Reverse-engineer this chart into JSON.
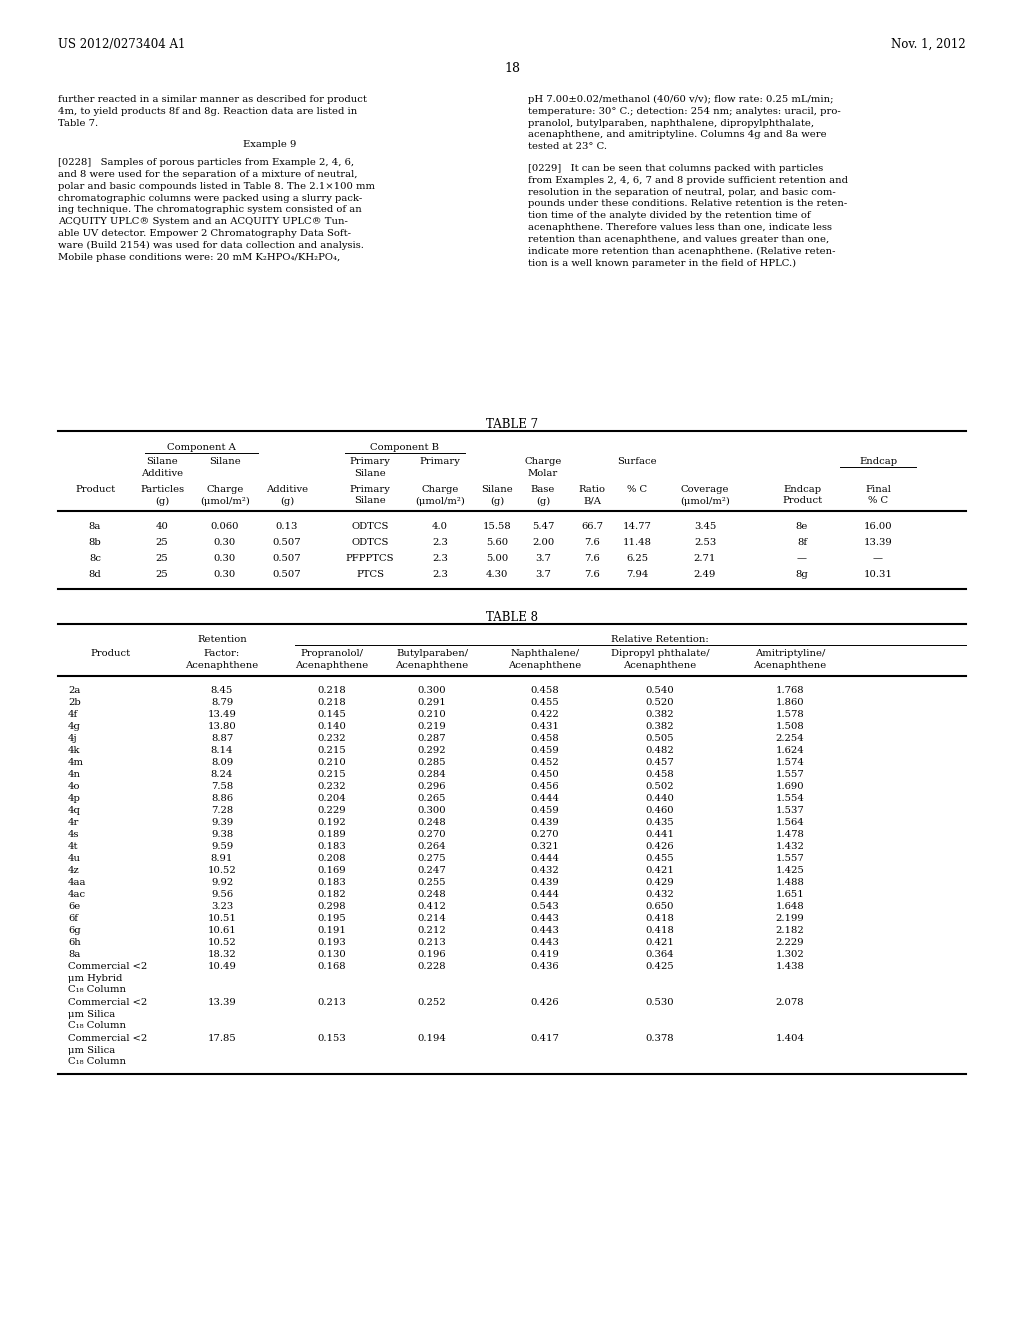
{
  "header_left": "US 2012/0273404 A1",
  "header_right": "Nov. 1, 2012",
  "page_number": "18",
  "para_left1": [
    "further reacted in a similar manner as described for product",
    "4m, to yield products 8f and 8g. Reaction data are listed in",
    "Table 7."
  ],
  "example9": "Example 9",
  "para228": [
    "[0228]   Samples of porous particles from Example 2, 4, 6,",
    "and 8 were used for the separation of a mixture of neutral,",
    "polar and basic compounds listed in Table 8. The 2.1×100 mm",
    "chromatographic columns were packed using a slurry pack-",
    "ing technique. The chromatographic system consisted of an",
    "ACQUITY UPLC® System and an ACQUITY UPLC® Tun-",
    "able UV detector. Empower 2 Chromatography Data Soft-",
    "ware (Build 2154) was used for data collection and analysis.",
    "Mobile phase conditions were: 20 mM K₂HPO₄/KH₂PO₄,"
  ],
  "para_right1": [
    "pH 7.00±0.02/methanol (40/60 v/v); flow rate: 0.25 mL/min;",
    "temperature: 30° C.; detection: 254 nm; analytes: uracil, pro-",
    "pranolol, butylparaben, naphthalene, dipropylphthalate,",
    "acenaphthene, and amitriptyline. Columns 4g and 8a were",
    "tested at 23° C."
  ],
  "para229": [
    "[0229]   It can be seen that columns packed with particles",
    "from Examples 2, 4, 6, 7 and 8 provide sufficient retention and",
    "resolution in the separation of neutral, polar, and basic com-",
    "pounds under these conditions. Relative retention is the reten-",
    "tion time of the analyte divided by the retention time of",
    "acenaphthene. Therefore values less than one, indicate less",
    "retention than acenaphthene, and values greater than one,",
    "indicate more retention than acenaphthene. (Relative reten-",
    "tion is a well known parameter in the field of HPLC.)"
  ],
  "table7_data": [
    [
      "8a",
      "40",
      "0.060",
      "0.13",
      "ODTCS",
      "4.0",
      "15.58",
      "5.47",
      "66.7",
      "14.77",
      "3.45",
      "8e",
      "16.00"
    ],
    [
      "8b",
      "25",
      "0.30",
      "0.507",
      "ODTCS",
      "2.3",
      "5.60",
      "2.00",
      "7.6",
      "11.48",
      "2.53",
      "8f",
      "13.39"
    ],
    [
      "8c",
      "25",
      "0.30",
      "0.507",
      "PFPPTCS",
      "2.3",
      "5.00",
      "3.7",
      "7.6",
      "6.25",
      "2.71",
      "—",
      "—"
    ],
    [
      "8d",
      "25",
      "0.30",
      "0.507",
      "PTCS",
      "2.3",
      "4.30",
      "3.7",
      "7.6",
      "7.94",
      "2.49",
      "8g",
      "10.31"
    ]
  ],
  "table8_data": [
    [
      "2a",
      "8.45",
      "0.218",
      "0.300",
      "0.458",
      "0.540",
      "1.768"
    ],
    [
      "2b",
      "8.79",
      "0.218",
      "0.291",
      "0.455",
      "0.520",
      "1.860"
    ],
    [
      "4f",
      "13.49",
      "0.145",
      "0.210",
      "0.422",
      "0.382",
      "1.578"
    ],
    [
      "4g",
      "13.80",
      "0.140",
      "0.219",
      "0.431",
      "0.382",
      "1.508"
    ],
    [
      "4j",
      "8.87",
      "0.232",
      "0.287",
      "0.458",
      "0.505",
      "2.254"
    ],
    [
      "4k",
      "8.14",
      "0.215",
      "0.292",
      "0.459",
      "0.482",
      "1.624"
    ],
    [
      "4m",
      "8.09",
      "0.210",
      "0.285",
      "0.452",
      "0.457",
      "1.574"
    ],
    [
      "4n",
      "8.24",
      "0.215",
      "0.284",
      "0.450",
      "0.458",
      "1.557"
    ],
    [
      "4o",
      "7.58",
      "0.232",
      "0.296",
      "0.456",
      "0.502",
      "1.690"
    ],
    [
      "4p",
      "8.86",
      "0.204",
      "0.265",
      "0.444",
      "0.440",
      "1.554"
    ],
    [
      "4q",
      "7.28",
      "0.229",
      "0.300",
      "0.459",
      "0.460",
      "1.537"
    ],
    [
      "4r",
      "9.39",
      "0.192",
      "0.248",
      "0.439",
      "0.435",
      "1.564"
    ],
    [
      "4s",
      "9.38",
      "0.189",
      "0.270",
      "0.270",
      "0.441",
      "1.478"
    ],
    [
      "4t",
      "9.59",
      "0.183",
      "0.264",
      "0.321",
      "0.426",
      "1.432"
    ],
    [
      "4u",
      "8.91",
      "0.208",
      "0.275",
      "0.444",
      "0.455",
      "1.557"
    ],
    [
      "4z",
      "10.52",
      "0.169",
      "0.247",
      "0.432",
      "0.421",
      "1.425"
    ],
    [
      "4aa",
      "9.92",
      "0.183",
      "0.255",
      "0.439",
      "0.429",
      "1.488"
    ],
    [
      "4ac",
      "9.56",
      "0.182",
      "0.248",
      "0.444",
      "0.432",
      "1.651"
    ],
    [
      "6e",
      "3.23",
      "0.298",
      "0.412",
      "0.543",
      "0.650",
      "1.648"
    ],
    [
      "6f",
      "10.51",
      "0.195",
      "0.214",
      "0.443",
      "0.418",
      "2.199"
    ],
    [
      "6g",
      "10.61",
      "0.191",
      "0.212",
      "0.443",
      "0.418",
      "2.182"
    ],
    [
      "6h",
      "10.52",
      "0.193",
      "0.213",
      "0.443",
      "0.421",
      "2.229"
    ],
    [
      "8a",
      "18.32",
      "0.130",
      "0.196",
      "0.419",
      "0.364",
      "1.302"
    ],
    [
      "Commercial <2\nμm Hybrid\nC₁₈ Column",
      "10.49",
      "0.168",
      "0.228",
      "0.436",
      "0.425",
      "1.438"
    ],
    [
      "Commercial <2\nμm Silica\nC₁₈ Column",
      "13.39",
      "0.213",
      "0.252",
      "0.426",
      "0.530",
      "2.078"
    ],
    [
      "Commercial <2\nμm Silica\nC₁₈ Column",
      "17.85",
      "0.153",
      "0.194",
      "0.417",
      "0.378",
      "1.404"
    ]
  ],
  "bg_color": "#ffffff"
}
